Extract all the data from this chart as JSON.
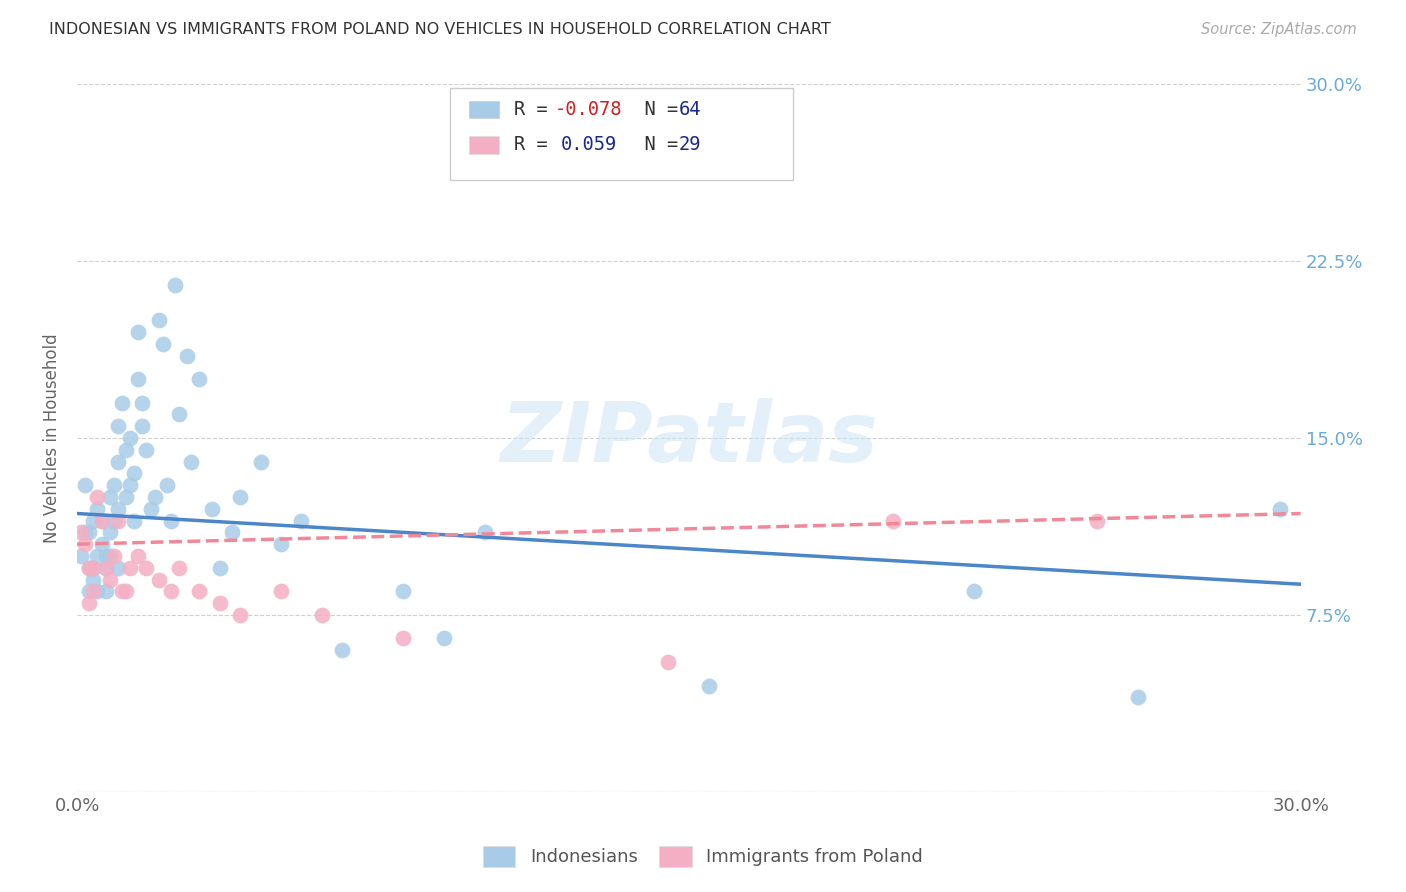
{
  "title": "INDONESIAN VS IMMIGRANTS FROM POLAND NO VEHICLES IN HOUSEHOLD CORRELATION CHART",
  "source": "Source: ZipAtlas.com",
  "ylabel": "No Vehicles in Household",
  "xlim": [
    0.0,
    0.3
  ],
  "ylim": [
    0.0,
    0.3
  ],
  "ytick_positions": [
    0.0,
    0.075,
    0.15,
    0.225,
    0.3
  ],
  "ytick_labels_right": [
    "",
    "7.5%",
    "15.0%",
    "22.5%",
    "30.0%"
  ],
  "color_blue": "#a8cce8",
  "color_pink": "#f4afc4",
  "color_line_blue": "#4a86c8",
  "color_line_pink": "#f08898",
  "color_axis_right": "#6aaad8",
  "watermark_text": "ZIPatlas",
  "indonesian_x": [
    0.001,
    0.002,
    0.002,
    0.003,
    0.003,
    0.003,
    0.004,
    0.004,
    0.004,
    0.005,
    0.005,
    0.005,
    0.006,
    0.006,
    0.007,
    0.007,
    0.007,
    0.008,
    0.008,
    0.008,
    0.009,
    0.009,
    0.01,
    0.01,
    0.01,
    0.01,
    0.011,
    0.012,
    0.012,
    0.013,
    0.013,
    0.014,
    0.014,
    0.015,
    0.015,
    0.016,
    0.016,
    0.017,
    0.018,
    0.019,
    0.02,
    0.021,
    0.022,
    0.023,
    0.024,
    0.025,
    0.027,
    0.028,
    0.03,
    0.033,
    0.035,
    0.038,
    0.04,
    0.045,
    0.05,
    0.055,
    0.065,
    0.08,
    0.09,
    0.1,
    0.155,
    0.22,
    0.26,
    0.295
  ],
  "indonesian_y": [
    0.1,
    0.13,
    0.11,
    0.085,
    0.095,
    0.11,
    0.095,
    0.115,
    0.09,
    0.1,
    0.12,
    0.085,
    0.105,
    0.115,
    0.1,
    0.085,
    0.095,
    0.11,
    0.125,
    0.1,
    0.13,
    0.115,
    0.14,
    0.155,
    0.095,
    0.12,
    0.165,
    0.145,
    0.125,
    0.15,
    0.13,
    0.135,
    0.115,
    0.175,
    0.195,
    0.155,
    0.165,
    0.145,
    0.12,
    0.125,
    0.2,
    0.19,
    0.13,
    0.115,
    0.215,
    0.16,
    0.185,
    0.14,
    0.175,
    0.12,
    0.095,
    0.11,
    0.125,
    0.14,
    0.105,
    0.115,
    0.06,
    0.085,
    0.065,
    0.11,
    0.045,
    0.085,
    0.04,
    0.12
  ],
  "poland_x": [
    0.001,
    0.002,
    0.003,
    0.003,
    0.004,
    0.004,
    0.005,
    0.006,
    0.007,
    0.008,
    0.009,
    0.01,
    0.011,
    0.012,
    0.013,
    0.015,
    0.017,
    0.02,
    0.023,
    0.025,
    0.03,
    0.035,
    0.04,
    0.05,
    0.06,
    0.08,
    0.145,
    0.2,
    0.25
  ],
  "poland_y": [
    0.11,
    0.105,
    0.08,
    0.095,
    0.085,
    0.095,
    0.125,
    0.115,
    0.095,
    0.09,
    0.1,
    0.115,
    0.085,
    0.085,
    0.095,
    0.1,
    0.095,
    0.09,
    0.085,
    0.095,
    0.085,
    0.08,
    0.075,
    0.085,
    0.075,
    0.065,
    0.055,
    0.115,
    0.115
  ],
  "ind_line_x": [
    0.0,
    0.3
  ],
  "ind_line_y": [
    0.118,
    0.088
  ],
  "pol_line_x": [
    0.0,
    0.3
  ],
  "pol_line_y": [
    0.105,
    0.118
  ]
}
